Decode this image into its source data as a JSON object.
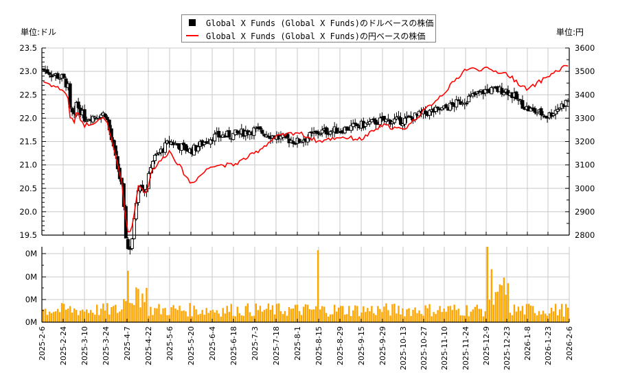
{
  "legend": {
    "usd_label": "Global X Funds (Global X Funds)のドルベースの株価",
    "jpy_label": "Global X Funds (Global X Funds)の円ベースの株価"
  },
  "units": {
    "left": "単位:ドル",
    "right": "単位:円"
  },
  "colors": {
    "candle": "#000000",
    "jpy_line": "#ff0000",
    "volume": "#ffa500",
    "grid": "#c8c8c8"
  },
  "chart_data": [
    {
      "type": "candlestick+line",
      "title": "",
      "legend": [
        "Global X Funds (Global X Funds)のドルベースの株価",
        "Global X Funds (Global X Funds)の円ベースの株価"
      ],
      "ylabel_left": "単位:ドル",
      "ylabel_right": "単位:円",
      "ylim_left": [
        19.5,
        23.5
      ],
      "ylim_right": [
        2800,
        3600
      ],
      "yticks_left": [
        "19.5",
        "20.0",
        "20.5",
        "21.0",
        "21.5",
        "22.0",
        "22.5",
        "23.0",
        "23.5"
      ],
      "yticks_right": [
        "2800",
        "2900",
        "3000",
        "3100",
        "3200",
        "3300",
        "3400",
        "3500",
        "3600"
      ],
      "grid": true,
      "x": [
        "2025-2-6",
        "2025-2-24",
        "2025-3-10",
        "2025-3-24",
        "2025-4-7",
        "2025-4-22",
        "2025-5-6",
        "2025-5-20",
        "2025-6-4",
        "2025-6-18",
        "2025-7-3",
        "2025-7-18",
        "2025-8-1",
        "2025-8-15",
        "2025-8-29",
        "2025-9-15",
        "2025-9-29",
        "2025-10-13",
        "2025-10-27",
        "2025-11-10",
        "2025-11-24",
        "2025-12-9",
        "2025-12-23",
        "2026-1-8",
        "2026-1-23",
        "2026-2-6"
      ],
      "series": [
        {
          "name": "USD close (approx, at x ticks)",
          "values": [
            23.05,
            22.85,
            22.0,
            22.1,
            20.0,
            21.0,
            21.5,
            21.3,
            21.6,
            21.65,
            21.75,
            21.6,
            21.5,
            21.7,
            21.75,
            21.85,
            21.95,
            21.95,
            22.1,
            22.2,
            22.4,
            22.6,
            22.6,
            22.2,
            22.05,
            22.4
          ]
        },
        {
          "name": "JPY line (approx, at x ticks)",
          "values": [
            3460,
            3420,
            3270,
            3300,
            2940,
            3060,
            3160,
            3020,
            3100,
            3100,
            3150,
            3220,
            3240,
            3200,
            3220,
            3210,
            3270,
            3250,
            3330,
            3410,
            3510,
            3510,
            3490,
            3420,
            3480,
            3530
          ]
        }
      ]
    },
    {
      "type": "bar",
      "title": "",
      "ylabel": "",
      "yticks": [
        "0M",
        "0M",
        "0M",
        "0M"
      ],
      "x": [
        "2025-2-6",
        "2026-2-6"
      ],
      "notes": "Daily volume bars; notable spikes near 2025-4-7, 2025-8-15 and 2025-12-9",
      "grid": true
    }
  ],
  "axes": {
    "left_ticks": [
      "19.5",
      "20.0",
      "20.5",
      "21.0",
      "21.5",
      "22.0",
      "22.5",
      "23.0",
      "23.5"
    ],
    "right_ticks": [
      "2800",
      "2900",
      "3000",
      "3100",
      "3200",
      "3300",
      "3400",
      "3500",
      "3600"
    ],
    "volume_ticks": [
      "0M",
      "0M",
      "0M",
      "0M"
    ],
    "x_ticks": [
      "2025-2-6",
      "2025-2-24",
      "2025-3-10",
      "2025-3-24",
      "2025-4-7",
      "2025-4-22",
      "2025-5-6",
      "2025-5-20",
      "2025-6-4",
      "2025-6-18",
      "2025-7-3",
      "2025-7-18",
      "2025-8-1",
      "2025-8-15",
      "2025-8-29",
      "2025-9-15",
      "2025-9-29",
      "2025-10-13",
      "2025-10-27",
      "2025-11-10",
      "2025-11-24",
      "2025-12-9",
      "2025-12-23",
      "2026-1-8",
      "2026-1-23",
      "2026-2-6"
    ]
  }
}
